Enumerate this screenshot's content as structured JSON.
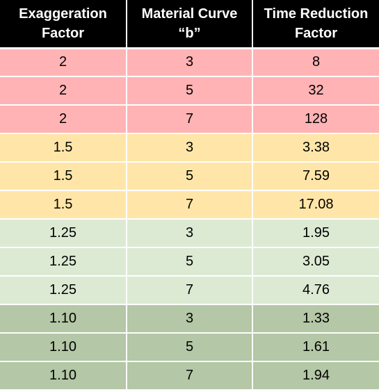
{
  "table": {
    "headers": [
      {
        "line1": "Exaggeration",
        "line2": "Factor"
      },
      {
        "line1": "Material Curve",
        "line2": "“b”"
      },
      {
        "line1": "Time Reduction",
        "line2": "Factor"
      }
    ],
    "rows": [
      {
        "group": "red",
        "cells": [
          "2",
          "3",
          "8"
        ]
      },
      {
        "group": "red",
        "cells": [
          "2",
          "5",
          "32"
        ]
      },
      {
        "group": "red",
        "cells": [
          "2",
          "7",
          "128"
        ]
      },
      {
        "group": "yellow",
        "cells": [
          "1.5",
          "3",
          "3.38"
        ]
      },
      {
        "group": "yellow",
        "cells": [
          "1.5",
          "5",
          "7.59"
        ]
      },
      {
        "group": "yellow",
        "cells": [
          "1.5",
          "7",
          "17.08"
        ]
      },
      {
        "group": "lightgreen",
        "cells": [
          "1.25",
          "3",
          "1.95"
        ]
      },
      {
        "group": "lightgreen",
        "cells": [
          "1.25",
          "5",
          "3.05"
        ]
      },
      {
        "group": "lightgreen",
        "cells": [
          "1.25",
          "7",
          "4.76"
        ]
      },
      {
        "group": "darkgreen",
        "cells": [
          "1.10",
          "3",
          "1.33"
        ]
      },
      {
        "group": "darkgreen",
        "cells": [
          "1.10",
          "5",
          "1.61"
        ]
      },
      {
        "group": "darkgreen",
        "cells": [
          "1.10",
          "7",
          "1.94"
        ]
      }
    ],
    "group_colors": {
      "header": "#000000",
      "red": "#ffb3b5",
      "yellow": "#ffe6a8",
      "lightgreen": "#dcead4",
      "darkgreen": "#b4c7a6"
    }
  }
}
